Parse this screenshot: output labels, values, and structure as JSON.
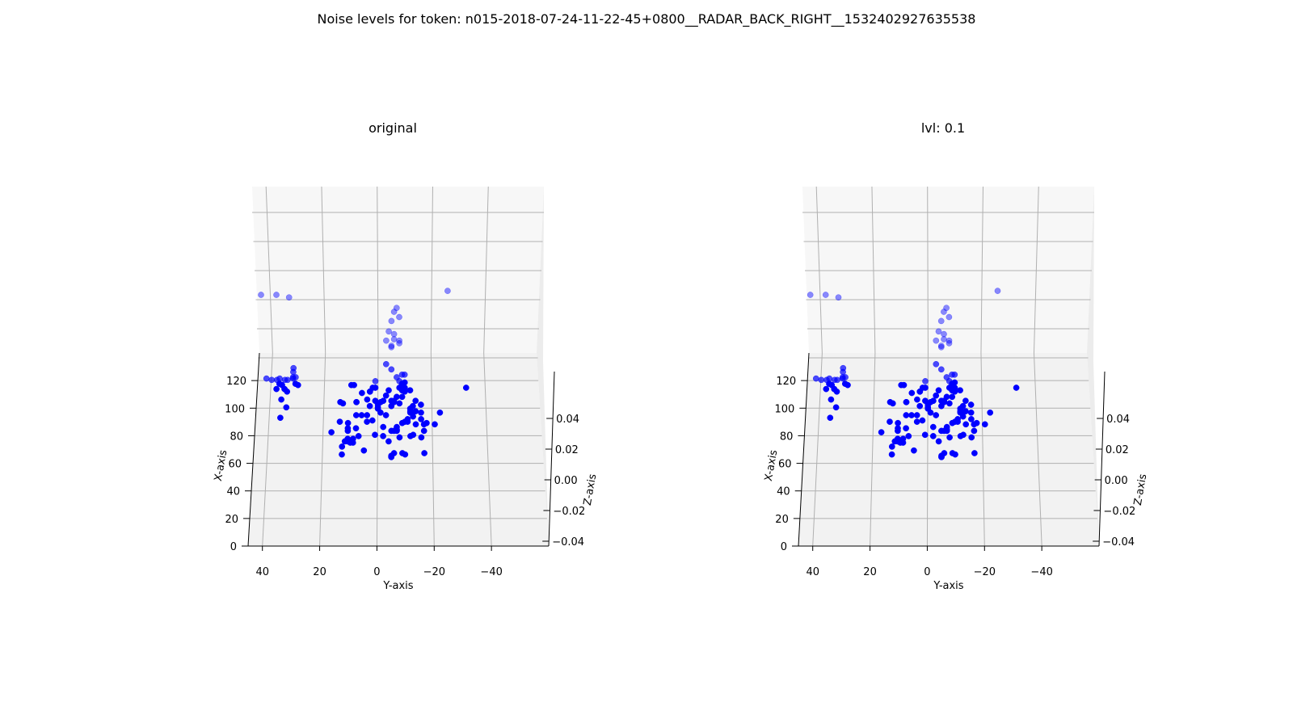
{
  "figure": {
    "title": "Noise levels for token: n015-2018-07-24-11-22-45+0800__RADAR_BACK_RIGHT__1532402927635538"
  },
  "colors": {
    "point": "#0000ff",
    "pane": "#f2f2f2",
    "grid": "#b0b0b0",
    "axis": "#000000"
  },
  "chart_data": [
    {
      "type": "scatter",
      "projection": "3d",
      "title": "original",
      "xlabel": "X-axis",
      "ylabel": "Y-axis",
      "zlabel": "Z-axis",
      "x_ticks": [
        "0",
        "20",
        "40",
        "60",
        "80",
        "100",
        "120"
      ],
      "y_ticks": [
        "40",
        "20",
        "0",
        "−20",
        "−40"
      ],
      "z_ticks": [
        "−0.04",
        "−0.02",
        "0.00",
        "0.02",
        "0.04"
      ],
      "xlim": [
        0,
        250
      ],
      "ylim": [
        -60,
        45
      ],
      "zlim": [
        -0.05,
        0.05
      ],
      "grid": true,
      "series": [
        {
          "x": [
            128,
            127,
            127,
            127,
            124,
            123,
            123,
            121,
            121,
            120,
            112,
            111,
            111,
            110,
            109,
            109,
            106,
            105,
            102,
            102,
            102,
            100,
            100,
            100,
            100,
            98,
            97,
            96,
            95,
            95,
            94,
            94,
            93,
            90,
            89,
            88,
            87,
            85,
            85,
            84,
            84,
            84,
            83,
            83,
            82,
            82,
            81,
            80,
            80,
            80,
            79,
            79,
            76,
            73,
            71,
            71,
            71,
            70,
            70,
            69,
            68,
            68,
            136,
            135,
            133,
            131,
            131,
            129,
            129,
            129,
            128,
            128,
            127,
            126,
            126,
            125,
            124,
            124,
            123,
            123,
            121,
            121,
            121,
            121,
            120,
            120,
            119,
            119,
            119,
            118,
            118,
            118,
            118,
            117,
            115,
            114,
            114,
            112,
            111,
            111,
            111,
            110,
            110,
            110,
            110,
            108,
            108,
            107,
            107,
            107,
            106,
            105,
            103,
            103,
            102,
            102,
            99,
            97,
            95,
            95,
            94,
            93,
            93,
            91,
            91,
            90,
            88,
            88,
            88,
            88,
            195,
            192,
            192,
            182,
            179,
            175,
            172,
            164,
            162,
            158,
            157,
            155,
            153,
            152,
            190,
            157,
            139
          ],
          "y": [
            42,
            40,
            35,
            34,
            37,
            10,
            9,
            1,
            -10,
            35,
            4,
            -5,
            -2,
            14,
            13,
            -8,
            0,
            0,
            -16,
            -13,
            -12,
            8,
            6,
            4,
            -3,
            36,
            -11,
            2,
            -10,
            4,
            -18,
            11,
            -17,
            8,
            -7,
            -17,
            17,
            -13,
            1,
            -12,
            7,
            -2,
            -8,
            -16,
            9,
            11,
            11,
            12,
            11,
            -4,
            10,
            9,
            13,
            5,
            -17,
            -9,
            -6,
            -10,
            13,
            -5,
            -5,
            -5,
            32,
            -5,
            32,
            -10,
            -9,
            -7,
            31,
            32,
            32,
            37,
            38,
            1,
            -8,
            -10,
            31,
            -9,
            30,
            36,
            -33,
            2,
            -8,
            -10,
            38,
            35,
            -9,
            -4,
            -12,
            3,
            -10,
            3,
            34,
            6,
            -3,
            -7,
            -9,
            36,
            -14,
            1,
            -6,
            8,
            8,
            -1,
            -6,
            -16,
            0,
            -13,
            -5,
            3,
            34,
            -12,
            -12,
            -14,
            -1,
            -23,
            -13,
            -16,
            -11,
            14,
            -9,
            -21,
            -14,
            -7,
            -2,
            11,
            -6,
            -5,
            -7,
            11,
            -27,
            46,
            40,
            -7,
            -6,
            -8,
            -5,
            -4,
            -6,
            -6,
            -8,
            -8,
            -5,
            -5,
            35,
            -3,
            -3
          ],
          "z": [
            0,
            0,
            0,
            0,
            0,
            0,
            0,
            0,
            0,
            0,
            0,
            0,
            0,
            0,
            0,
            0,
            0,
            0,
            0,
            0,
            0,
            0,
            0,
            0,
            0,
            0,
            0,
            0,
            0,
            0,
            0,
            0,
            0,
            0,
            0,
            0,
            0,
            0,
            0,
            0,
            0,
            0,
            0,
            0,
            0,
            0,
            0,
            0,
            0,
            0,
            0,
            0,
            0,
            0,
            0,
            0,
            0,
            0,
            0,
            0,
            0,
            0,
            0,
            0,
            0,
            0,
            0,
            0,
            0,
            0,
            0,
            0,
            0,
            0,
            0,
            0,
            0,
            0,
            0,
            0,
            0,
            0,
            0,
            0,
            0,
            0,
            0,
            0,
            0,
            0,
            0,
            0,
            0,
            0,
            0,
            0,
            0,
            0,
            0,
            0,
            0,
            0,
            0,
            0,
            0,
            0,
            0,
            0,
            0,
            0,
            0,
            0,
            0,
            0,
            0,
            0,
            0,
            0,
            0,
            0,
            0,
            0,
            0,
            0,
            0,
            0,
            0,
            0,
            0,
            0,
            0,
            0,
            0,
            0,
            0,
            0,
            0,
            0,
            0,
            0,
            0,
            0,
            0,
            0,
            0,
            0,
            0
          ]
        }
      ]
    },
    {
      "type": "scatter",
      "projection": "3d",
      "title": "lvl: 0.1",
      "xlabel": "X-axis",
      "ylabel": "Y-axis",
      "zlabel": "Z-axis",
      "x_ticks": [
        "0",
        "20",
        "40",
        "60",
        "80",
        "100",
        "120"
      ],
      "y_ticks": [
        "40",
        "20",
        "0",
        "−20",
        "−40"
      ],
      "z_ticks": [
        "−0.04",
        "−0.02",
        "0.00",
        "0.02",
        "0.04"
      ],
      "xlim": [
        0,
        250
      ],
      "ylim": [
        -60,
        45
      ],
      "zlim": [
        -0.05,
        0.05
      ],
      "grid": true,
      "series": [
        {
          "x": [
            128,
            127,
            127,
            127,
            124,
            123,
            123,
            121,
            121,
            120,
            112,
            111,
            111,
            110,
            109,
            109,
            106,
            105,
            102,
            102,
            102,
            100,
            100,
            100,
            100,
            98,
            97,
            96,
            95,
            95,
            94,
            94,
            93,
            90,
            89,
            88,
            87,
            85,
            85,
            84,
            84,
            84,
            83,
            83,
            82,
            82,
            81,
            80,
            80,
            80,
            79,
            79,
            76,
            73,
            71,
            71,
            71,
            70,
            70,
            69,
            68,
            68,
            136,
            135,
            133,
            131,
            131,
            129,
            129,
            129,
            128,
            128,
            127,
            126,
            126,
            125,
            124,
            124,
            123,
            123,
            121,
            121,
            121,
            121,
            120,
            120,
            119,
            119,
            119,
            118,
            118,
            118,
            118,
            117,
            115,
            114,
            114,
            112,
            111,
            111,
            111,
            110,
            110,
            110,
            110,
            108,
            108,
            107,
            107,
            107,
            106,
            105,
            103,
            103,
            102,
            102,
            99,
            97,
            95,
            95,
            94,
            93,
            93,
            91,
            91,
            90,
            88,
            88,
            88,
            88,
            195,
            192,
            192,
            182,
            179,
            175,
            172,
            164,
            162,
            158,
            157,
            155,
            153,
            152,
            190,
            157,
            139
          ],
          "y": [
            42,
            40,
            35,
            34,
            37,
            10,
            9,
            1,
            -10,
            35,
            4,
            -5,
            -2,
            14,
            13,
            -8,
            0,
            0,
            -16,
            -13,
            -12,
            8,
            6,
            4,
            -3,
            36,
            -11,
            2,
            -10,
            4,
            -18,
            11,
            -17,
            8,
            -7,
            -17,
            17,
            -13,
            1,
            -12,
            7,
            -2,
            -8,
            -16,
            9,
            11,
            11,
            12,
            11,
            -4,
            10,
            9,
            13,
            5,
            -17,
            -9,
            -6,
            -10,
            13,
            -5,
            -5,
            -5,
            32,
            -5,
            32,
            -10,
            -9,
            -7,
            31,
            32,
            32,
            37,
            38,
            1,
            -8,
            -10,
            31,
            -9,
            30,
            36,
            -33,
            2,
            -8,
            -10,
            38,
            35,
            -9,
            -4,
            -12,
            3,
            -10,
            3,
            34,
            6,
            -3,
            -7,
            -9,
            36,
            -14,
            1,
            -6,
            8,
            8,
            -1,
            -6,
            -16,
            0,
            -13,
            -5,
            3,
            34,
            -12,
            -12,
            -14,
            -1,
            -23,
            -13,
            -16,
            -11,
            14,
            -9,
            -21,
            -14,
            -7,
            -2,
            11,
            -6,
            -5,
            -7,
            11,
            -27,
            46,
            40,
            -7,
            -6,
            -8,
            -5,
            -4,
            -6,
            -6,
            -8,
            -8,
            -5,
            -5,
            35,
            -3,
            -3
          ],
          "z": [
            0,
            0,
            0,
            0,
            0,
            0,
            0,
            0,
            0,
            0,
            0,
            0,
            0,
            0,
            0,
            0,
            0,
            0,
            0,
            0,
            0,
            0,
            0,
            0,
            0,
            0,
            0,
            0,
            0,
            0,
            0,
            0,
            0,
            0,
            0,
            0,
            0,
            0,
            0,
            0,
            0,
            0,
            0,
            0,
            0,
            0,
            0,
            0,
            0,
            0,
            0,
            0,
            0,
            0,
            0,
            0,
            0,
            0,
            0,
            0,
            0,
            0,
            0,
            0,
            0,
            0,
            0,
            0,
            0,
            0,
            0,
            0,
            0,
            0,
            0,
            0,
            0,
            0,
            0,
            0,
            0,
            0,
            0,
            0,
            0,
            0,
            0,
            0,
            0,
            0,
            0,
            0,
            0,
            0,
            0,
            0,
            0,
            0,
            0,
            0,
            0,
            0,
            0,
            0,
            0,
            0,
            0,
            0,
            0,
            0,
            0,
            0,
            0,
            0,
            0,
            0,
            0,
            0,
            0,
            0,
            0,
            0,
            0,
            0,
            0,
            0,
            0,
            0,
            0,
            0,
            0,
            0,
            0,
            0,
            0,
            0,
            0,
            0,
            0,
            0,
            0,
            0,
            0,
            0,
            0,
            0,
            0
          ]
        }
      ]
    }
  ]
}
